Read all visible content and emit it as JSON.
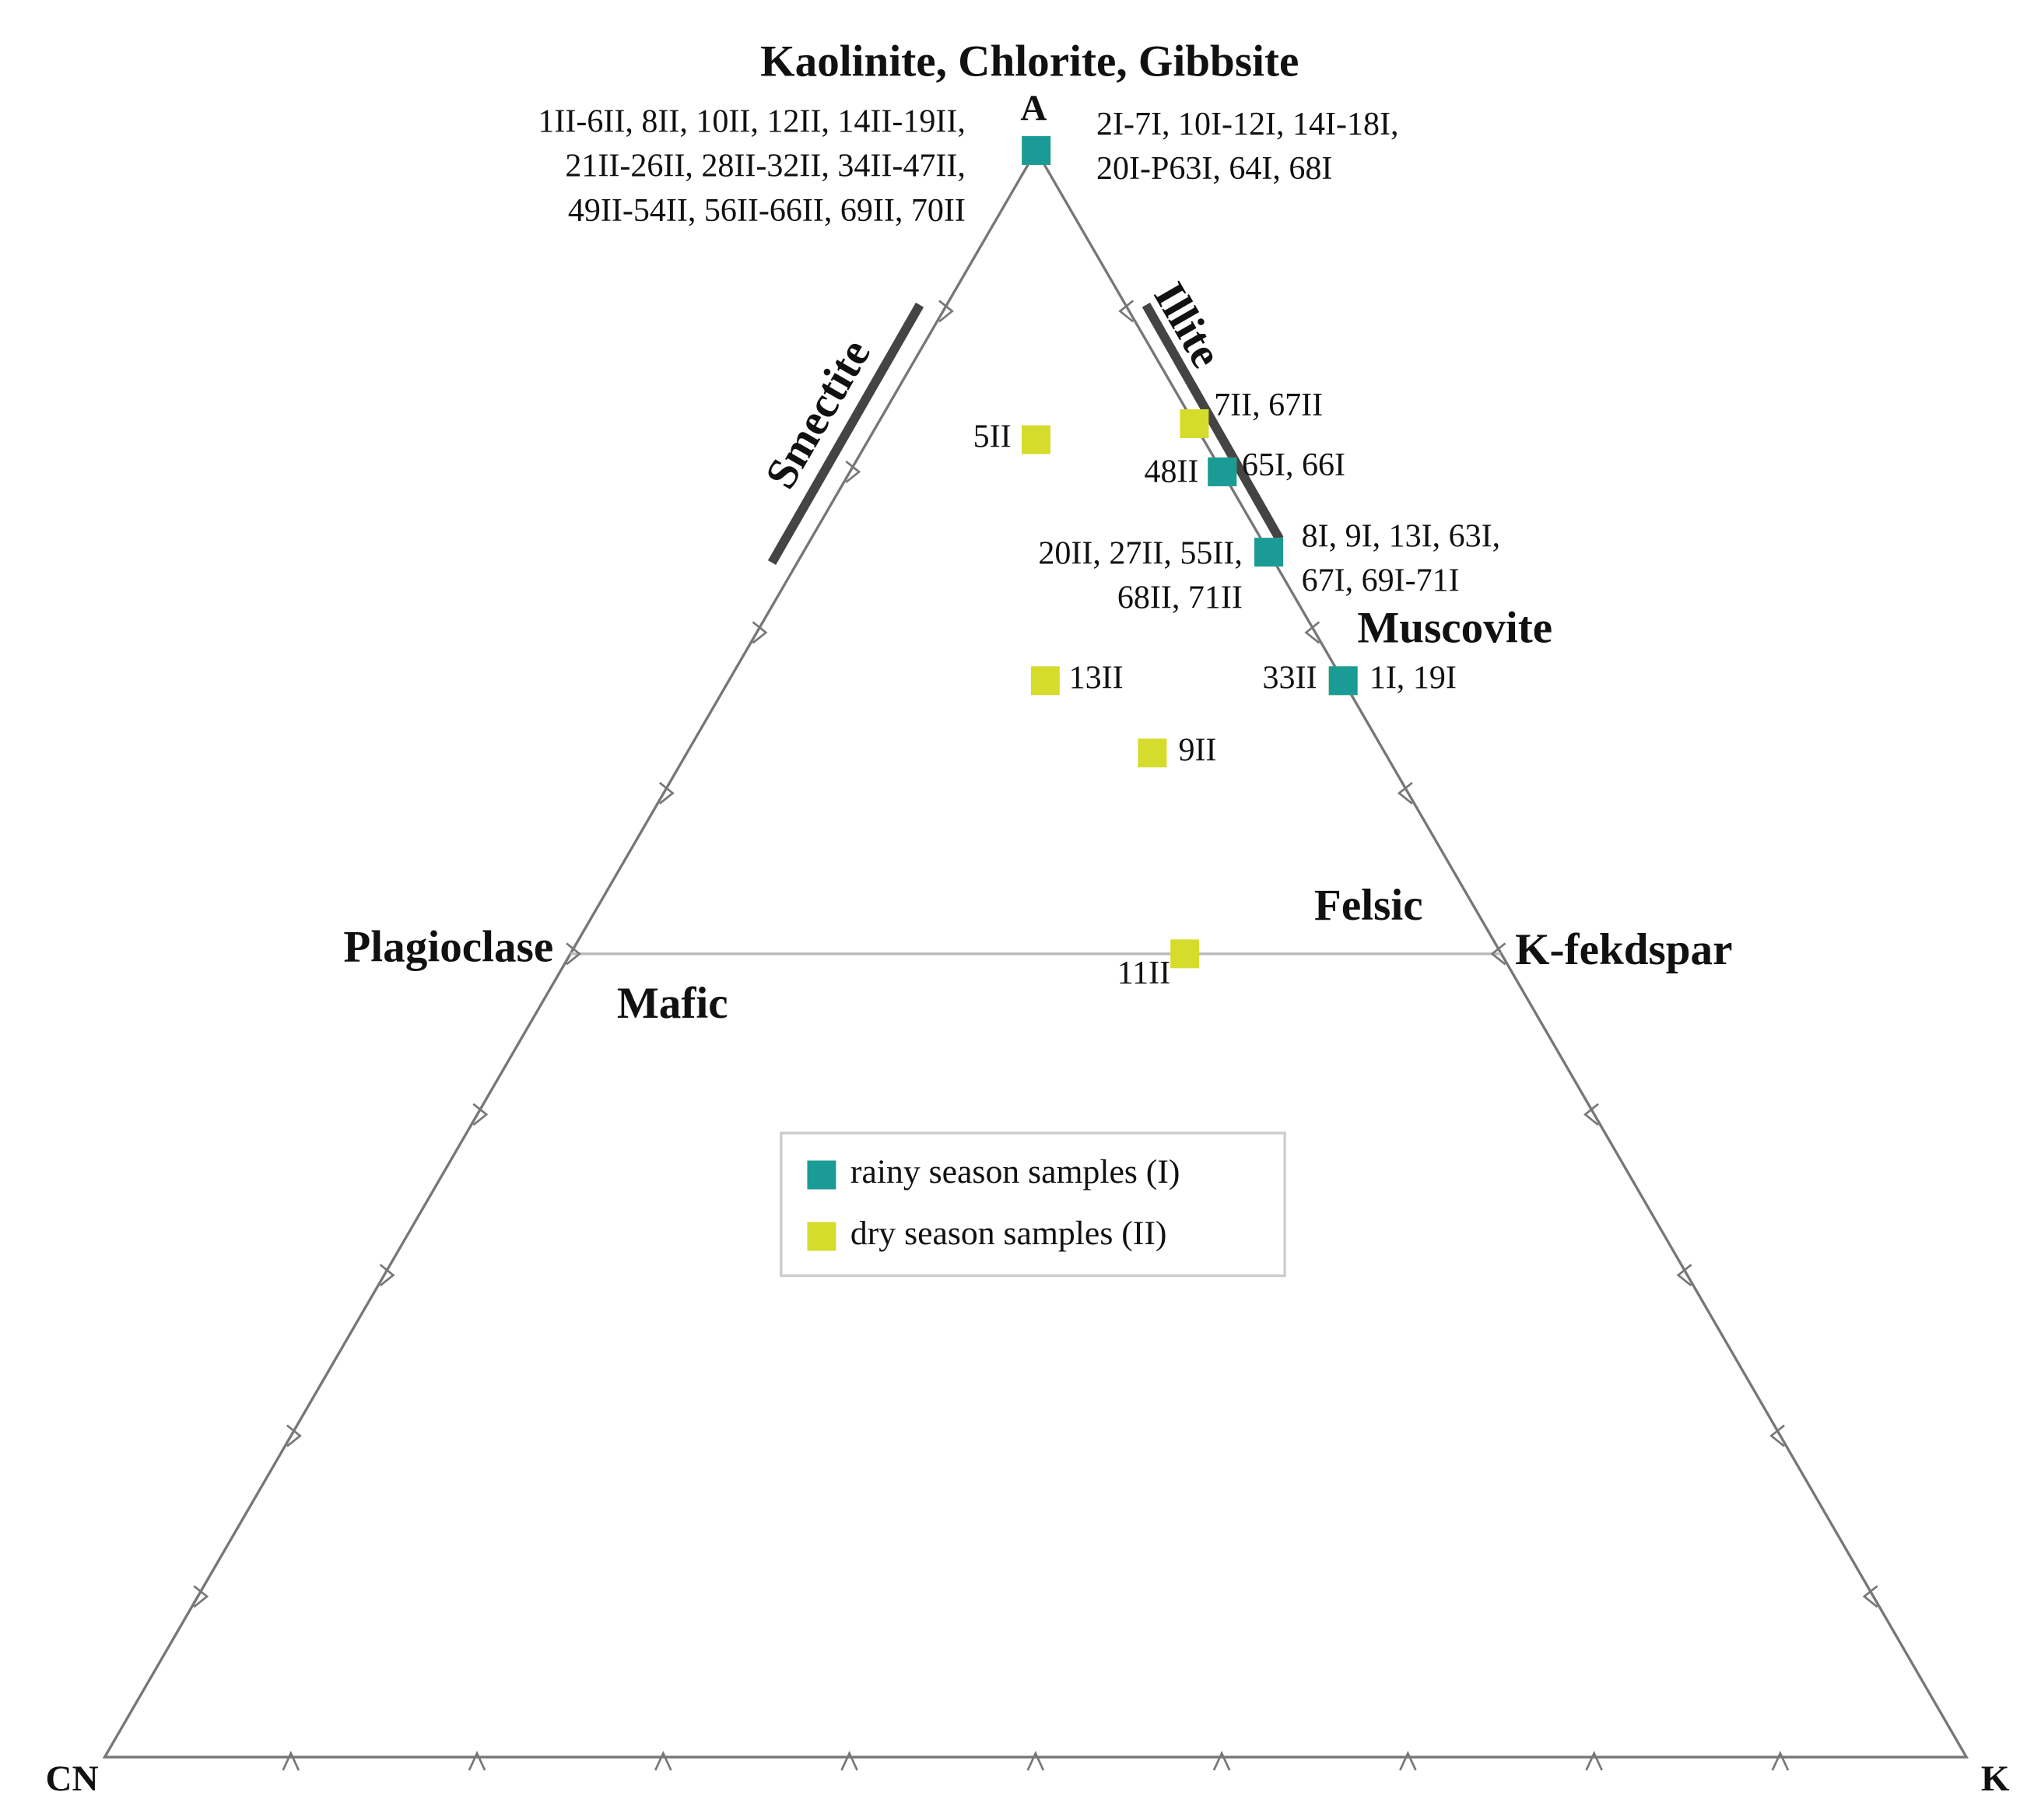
{
  "chart_data": {
    "type": "ternary",
    "title": "Kaolinite, Chlorite, Gibbsite",
    "vertex_labels": {
      "top": "A",
      "left": "CN",
      "right": "K"
    },
    "ticks": [
      10,
      20,
      30,
      40,
      50,
      60,
      70,
      80,
      90
    ],
    "annotations": [
      "Smectite",
      "Illite",
      "Muscovite",
      "Plagioclase",
      "K-fekdspar",
      "Mafic",
      "Felsic"
    ],
    "series": [
      {
        "name": "dry season samples (II)",
        "color": "#d6dc2c",
        "a": [
          100,
          82,
          83,
          80,
          75,
          67,
          67,
          62.5,
          50
        ],
        "cn": [
          0,
          9,
          0,
          0,
          0,
          16,
          0,
          12.5,
          17
        ],
        "k": [
          0,
          9,
          17,
          20,
          25,
          17,
          33,
          25,
          33
        ],
        "labels": [
          [
            "1II-6II, 8II, 10II, 12II, 14II-19II,",
            "21II-26II, 28II-32II, 34II-47II,",
            "49II-54II, 56II-66II, 69II, 70II"
          ],
          "5II",
          "7II, 67II",
          "48II",
          [
            "20II, 27II, 55II,",
            "68II, 71II"
          ],
          "13II",
          "33II",
          "9II",
          "11II"
        ]
      },
      {
        "name": "rainy season samples (I)",
        "color": "#1b9b95",
        "a": [
          100,
          80,
          75,
          67
        ],
        "cn": [
          0,
          0,
          0,
          0
        ],
        "k": [
          0,
          20,
          25,
          33
        ],
        "labels": [
          [
            "2I-7I, 10I-12I, 14I-18I,",
            "20I-P63I, 64I, 68I"
          ],
          "65I, 66I",
          [
            "8I, 9I, 13I, 63I,",
            "67I, 69I-71I"
          ],
          "1I, 19I"
        ]
      }
    ]
  }
}
